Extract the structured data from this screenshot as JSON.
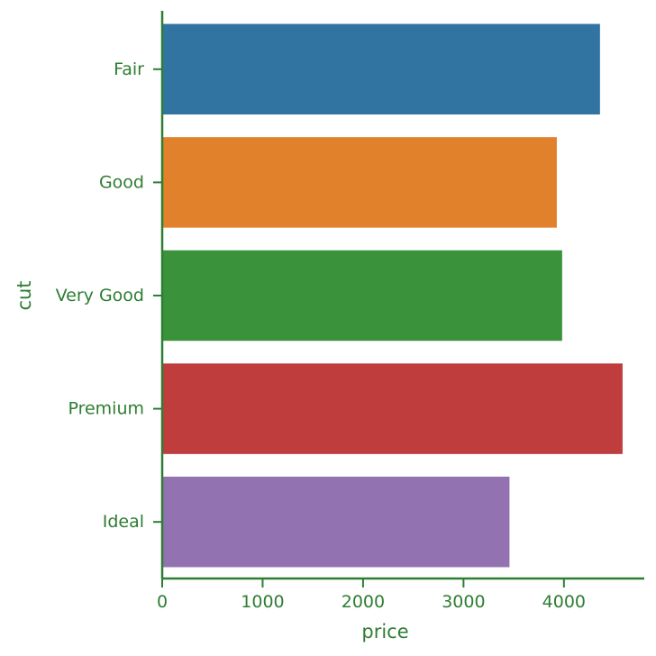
{
  "colors": {
    "axis": "#2e7d32",
    "bars": [
      "#3274a1",
      "#e1812c",
      "#3a923a",
      "#c03d3e",
      "#9372b2"
    ]
  },
  "chart_data": {
    "type": "bar",
    "orientation": "horizontal",
    "categories": [
      "Fair",
      "Good",
      "Very Good",
      "Premium",
      "Ideal"
    ],
    "values": [
      4359,
      3929,
      3982,
      4584,
      3458
    ],
    "xlabel": "price",
    "ylabel": "cut",
    "xlim": [
      0,
      4800
    ],
    "xticks": [
      "0",
      "1000",
      "2000",
      "3000",
      "4000"
    ],
    "grid": false,
    "legend": "none"
  }
}
